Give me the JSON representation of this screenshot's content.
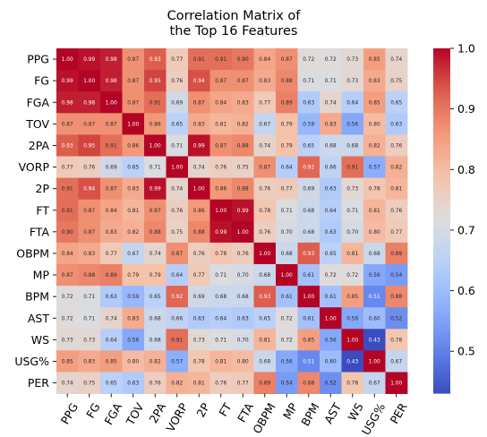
{
  "chart_data": {
    "type": "heatmap",
    "title": "Correlation Matrix of\nthe Top 16 Features",
    "labels": [
      "PPG",
      "FG",
      "FGA",
      "TOV",
      "2PA",
      "VORP",
      "2P",
      "FT",
      "FTA",
      "OBPM",
      "MP",
      "BPM",
      "AST",
      "WS",
      "USG%",
      "PER"
    ],
    "matrix": [
      [
        1.0,
        0.99,
        0.98,
        0.87,
        0.93,
        0.77,
        0.91,
        0.91,
        0.9,
        0.84,
        0.87,
        0.72,
        0.72,
        0.73,
        0.85,
        0.74
      ],
      [
        0.99,
        1.0,
        0.98,
        0.87,
        0.95,
        0.76,
        0.94,
        0.87,
        0.87,
        0.83,
        0.88,
        0.71,
        0.71,
        0.73,
        0.83,
        0.75
      ],
      [
        0.98,
        0.98,
        1.0,
        0.87,
        0.91,
        0.69,
        0.87,
        0.84,
        0.83,
        0.77,
        0.89,
        0.63,
        0.74,
        0.64,
        0.85,
        0.65
      ],
      [
        0.87,
        0.87,
        0.87,
        1.0,
        0.86,
        0.65,
        0.83,
        0.81,
        0.82,
        0.67,
        0.79,
        0.59,
        0.83,
        0.56,
        0.8,
        0.63
      ],
      [
        0.93,
        0.95,
        0.91,
        0.86,
        1.0,
        0.71,
        0.99,
        0.87,
        0.88,
        0.74,
        0.79,
        0.65,
        0.68,
        0.68,
        0.82,
        0.76
      ],
      [
        0.77,
        0.76,
        0.69,
        0.65,
        0.71,
        1.0,
        0.74,
        0.76,
        0.75,
        0.87,
        0.64,
        0.92,
        0.66,
        0.91,
        0.57,
        0.82
      ],
      [
        0.91,
        0.94,
        0.87,
        0.83,
        0.99,
        0.74,
        1.0,
        0.86,
        0.88,
        0.76,
        0.77,
        0.69,
        0.63,
        0.73,
        0.78,
        0.81
      ],
      [
        0.91,
        0.87,
        0.84,
        0.81,
        0.87,
        0.76,
        0.86,
        1.0,
        0.99,
        0.78,
        0.71,
        0.68,
        0.64,
        0.71,
        0.81,
        0.76
      ],
      [
        0.9,
        0.87,
        0.83,
        0.82,
        0.88,
        0.75,
        0.88,
        0.99,
        1.0,
        0.76,
        0.7,
        0.68,
        0.63,
        0.7,
        0.8,
        0.77
      ],
      [
        0.84,
        0.83,
        0.77,
        0.67,
        0.74,
        0.87,
        0.76,
        0.78,
        0.76,
        1.0,
        0.68,
        0.93,
        0.65,
        0.81,
        0.68,
        0.89
      ],
      [
        0.87,
        0.88,
        0.89,
        0.79,
        0.79,
        0.64,
        0.77,
        0.71,
        0.7,
        0.68,
        1.0,
        0.61,
        0.72,
        0.72,
        0.56,
        0.54
      ],
      [
        0.72,
        0.71,
        0.63,
        0.59,
        0.65,
        0.92,
        0.69,
        0.68,
        0.68,
        0.93,
        0.61,
        1.0,
        0.61,
        0.85,
        0.51,
        0.88
      ],
      [
        0.72,
        0.71,
        0.74,
        0.83,
        0.68,
        0.66,
        0.63,
        0.64,
        0.63,
        0.65,
        0.72,
        0.61,
        1.0,
        0.56,
        0.6,
        0.52
      ],
      [
        0.73,
        0.73,
        0.64,
        0.56,
        0.68,
        0.91,
        0.73,
        0.71,
        0.7,
        0.81,
        0.72,
        0.85,
        0.56,
        1.0,
        0.43,
        0.78
      ],
      [
        0.85,
        0.83,
        0.85,
        0.8,
        0.82,
        0.57,
        0.78,
        0.81,
        0.8,
        0.68,
        0.56,
        0.51,
        0.6,
        0.43,
        1.0,
        0.67
      ],
      [
        0.74,
        0.75,
        0.65,
        0.63,
        0.76,
        0.82,
        0.81,
        0.76,
        0.77,
        0.89,
        0.54,
        0.88,
        0.52,
        0.78,
        0.67,
        1.0
      ]
    ],
    "colorbar": {
      "colormap": "coolwarm",
      "vmin": 0.43,
      "vmax": 1.0,
      "ticks": [
        0.5,
        0.6,
        0.7,
        0.8,
        0.9,
        1.0
      ],
      "tick_labels": [
        "0.5",
        "0.6",
        "0.7",
        "0.8",
        "0.9",
        "1.0"
      ]
    }
  }
}
